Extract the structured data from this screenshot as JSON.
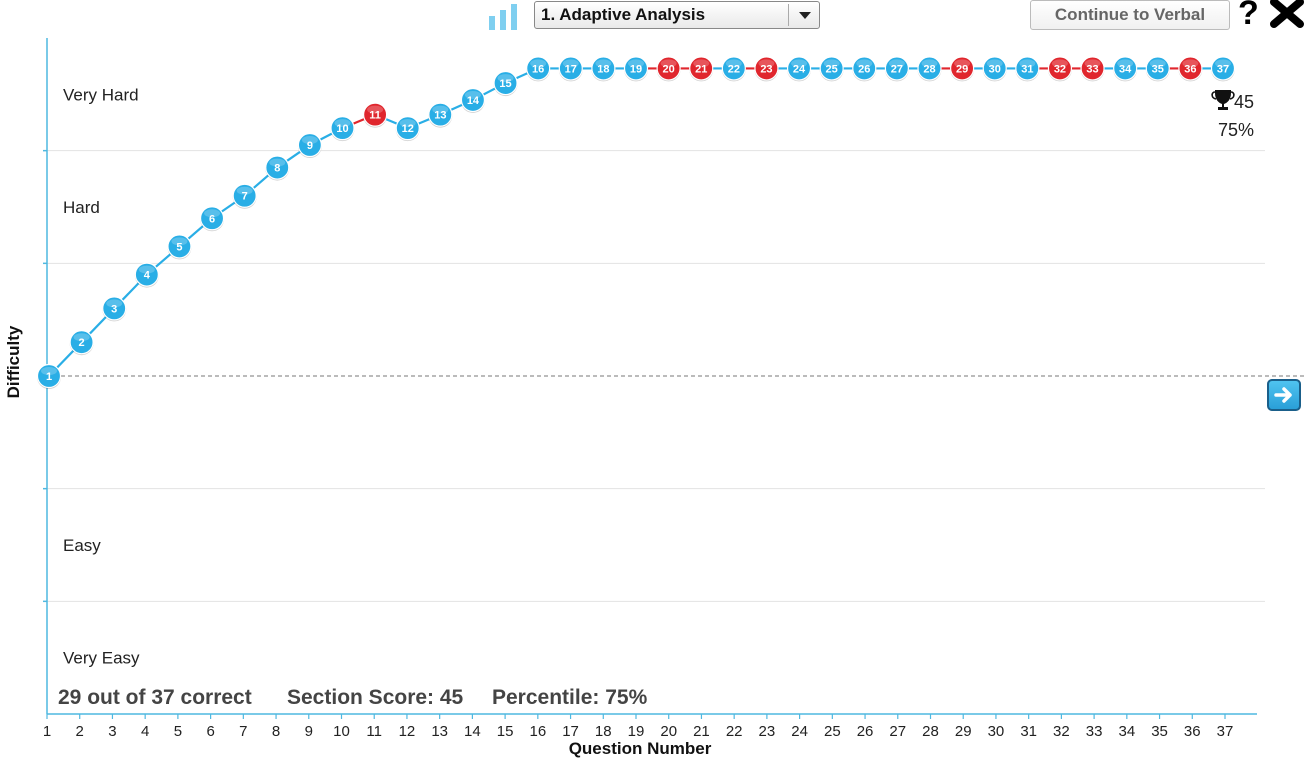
{
  "toolbar": {
    "dropdown_value": "1. Adaptive Analysis",
    "continue_label": "Continue to Verbal",
    "help_label": "?"
  },
  "chart_data": {
    "type": "line",
    "title": "",
    "xlabel": "Question Number",
    "ylabel": "Difficulty",
    "x": [
      1,
      2,
      3,
      4,
      5,
      6,
      7,
      8,
      9,
      10,
      11,
      12,
      13,
      14,
      15,
      16,
      17,
      18,
      19,
      20,
      21,
      22,
      23,
      24,
      25,
      26,
      27,
      28,
      29,
      30,
      31,
      32,
      33,
      34,
      35,
      36,
      37
    ],
    "difficulty": [
      0,
      0.3,
      0.6,
      0.9,
      1.15,
      1.4,
      1.6,
      1.85,
      2.05,
      2.2,
      2.32,
      2.2,
      2.32,
      2.45,
      2.6,
      2.73,
      2.73,
      2.73,
      2.73,
      2.73,
      2.73,
      2.73,
      2.73,
      2.73,
      2.73,
      2.73,
      2.73,
      2.73,
      2.73,
      2.73,
      2.73,
      2.73,
      2.73,
      2.73,
      2.73,
      2.73,
      2.73
    ],
    "correct": [
      true,
      true,
      true,
      true,
      true,
      true,
      true,
      true,
      true,
      true,
      false,
      true,
      true,
      true,
      true,
      true,
      true,
      true,
      true,
      false,
      false,
      true,
      false,
      true,
      true,
      true,
      true,
      true,
      false,
      true,
      true,
      false,
      false,
      true,
      true,
      false,
      true
    ],
    "ylim": [
      -3,
      3
    ],
    "bands": [
      "Very Hard",
      "Hard",
      "",
      "",
      "Easy",
      "Very Easy"
    ],
    "final_score": "45",
    "final_percentile": "75%",
    "colors": {
      "correct": "#29aee6",
      "incorrect": "#e0262d",
      "axis": "#4fb8e0"
    }
  },
  "summary": {
    "correct_text": "29 out of 37 correct",
    "score_text": "Section Score: 45",
    "percentile_text": "Percentile: 75%"
  }
}
